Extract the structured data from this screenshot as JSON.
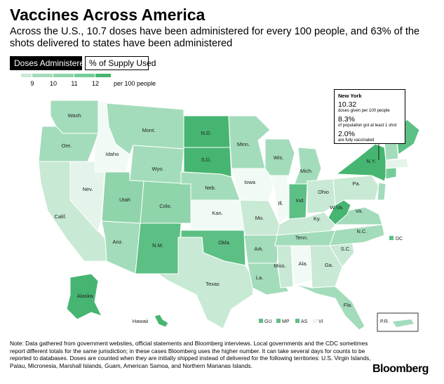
{
  "header": {
    "title": "Vaccines Across America",
    "subtitle": "Across the U.S., 10.7 doses have been administered for every 100 people, and 63% of the shots delivered to states have been administered"
  },
  "toggles": {
    "doses_label": "Doses Administered",
    "supply_label": "% of Supply Used"
  },
  "legend": {
    "ticks": [
      "9",
      "10",
      "11",
      "12"
    ],
    "unit": "per 100 people",
    "colors": [
      "#e9f6ee",
      "#c8e9d4",
      "#a3dcbb",
      "#74cc98",
      "#45b571"
    ]
  },
  "states": {
    "wash": "Wash.",
    "ore": "Ore.",
    "calif": "Calif.",
    "nev": "Nev.",
    "idaho": "Idaho",
    "mont": "Mont.",
    "wyo": "Wyo.",
    "utah": "Utah",
    "colo": "Colo.",
    "ariz": "Ariz.",
    "nm": "N.M.",
    "nd": "N.D.",
    "sd": "S.D.",
    "neb": "Neb.",
    "kan": "Kan.",
    "okla": "Okla.",
    "texas": "Texas",
    "minn": "Minn.",
    "iowa": "Iowa",
    "mo": "Mo.",
    "ark": "Ark.",
    "la": "La.",
    "wis": "Wis.",
    "ill": "Ill.",
    "mich": "Mich.",
    "ind": "Ind.",
    "ohio": "Ohio",
    "ky": "Ky.",
    "tenn": "Tenn.",
    "miss": "Miss.",
    "ala": "Ala.",
    "ga": "Ga.",
    "fla": "Fla.",
    "sc": "S.C.",
    "nc": "N.C.",
    "va": "Va.",
    "wva": "W.Va.",
    "pa": "Pa.",
    "ny": "N.Y.",
    "alaska": "Alaska",
    "hawaii": "Hawaii"
  },
  "territories": {
    "dc": "DC",
    "gu": "GU",
    "mp": "MP",
    "as": "AS",
    "vi": "VI",
    "pr": "P.R."
  },
  "tooltip": {
    "title": "New York",
    "doses_value": "10.32",
    "doses_caption": "doses given per 100 people",
    "first_shot_value": "8.3%",
    "first_shot_caption": "of population got at least 1 shot",
    "full_value": "2.0%",
    "full_caption": "are fully vaccinated"
  },
  "note": "Note: Data gathered from government websites, official statements and Bloomberg interviews. Local governments and the CDC sometimes report different totals for the same jurisdiction; in these cases Bloomberg uses the higher number. It can take several days for counts to be reported to databases. Doses are counted when they are initially shipped instead of delivered for the following territories: U.S. Virgin Islands, Palau, Micronesia, Marshall Islands, Guam, American Samoa, and Northern Marianas Islands.",
  "brand": "Bloomberg"
}
